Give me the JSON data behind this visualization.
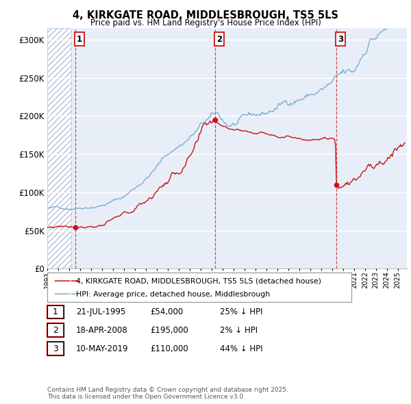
{
  "title_line1": "4, KIRKGATE ROAD, MIDDLESBROUGH, TS5 5LS",
  "title_line2": "Price paid vs. HM Land Registry's House Price Index (HPI)",
  "ylim": [
    0,
    315000
  ],
  "yticks": [
    0,
    50000,
    100000,
    150000,
    200000,
    250000,
    300000
  ],
  "ytick_labels": [
    "£0",
    "£50K",
    "£100K",
    "£150K",
    "£200K",
    "£250K",
    "£300K"
  ],
  "xlim_start": 1993.0,
  "xlim_end": 2025.83,
  "sale_dates": [
    1995.54,
    2008.3,
    2019.36
  ],
  "sale_prices": [
    54000,
    195000,
    110000
  ],
  "sale_labels": [
    "1",
    "2",
    "3"
  ],
  "hpi_color": "#7aaecc",
  "price_color": "#cc1111",
  "legend_label_price": "4, KIRKGATE ROAD, MIDDLESBROUGH, TS5 5LS (detached house)",
  "legend_label_hpi": "HPI: Average price, detached house, Middlesbrough",
  "table_rows": [
    [
      "1",
      "21-JUL-1995",
      "£54,000",
      "25% ↓ HPI"
    ],
    [
      "2",
      "18-APR-2008",
      "£195,000",
      "2% ↓ HPI"
    ],
    [
      "3",
      "10-MAY-2019",
      "£110,000",
      "44% ↓ HPI"
    ]
  ],
  "footer": "Contains HM Land Registry data © Crown copyright and database right 2025.\nThis data is licensed under the Open Government Licence v3.0.",
  "background_color": "#ffffff",
  "plot_bg_color": "#e8eef8",
  "hatch_color": "#b0c0d8",
  "hatch_end": 1995.2
}
